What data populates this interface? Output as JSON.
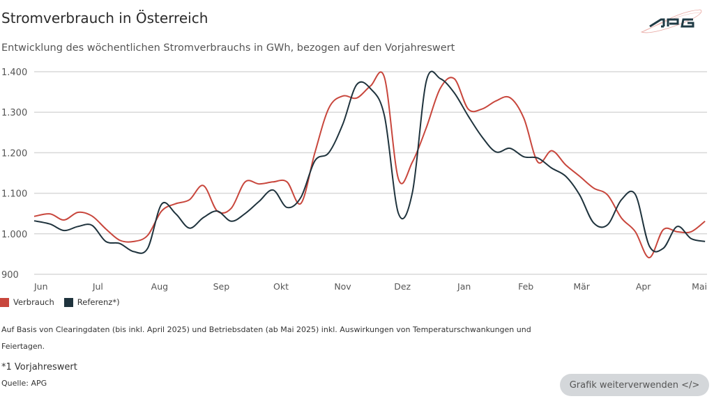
{
  "header": {
    "title": "Stromverbrauch in Österreich",
    "subtitle": "Entwicklung des wöchentlichen Stromverbrauchs in GWh, bezogen auf den Vorjahreswert",
    "logo_text": "APG"
  },
  "chart_data": {
    "type": "line",
    "title": "Stromverbrauch in Österreich",
    "ylabel": "",
    "xlabel": "",
    "ylim": [
      900,
      1400
    ],
    "yticks": [
      900,
      1000,
      1100,
      1200,
      1300,
      1400
    ],
    "ytick_labels": [
      "900",
      "1.000",
      "1.100",
      "1.200",
      "1.300",
      "1.400"
    ],
    "xtick_labels": [
      "Jun",
      "Jul",
      "Aug",
      "Sep",
      "Okt",
      "Nov",
      "Dez",
      "Jan",
      "Feb",
      "Mär",
      "Apr",
      "Mai"
    ],
    "xtick_dates": [
      "2024-06-01",
      "2024-07-01",
      "2024-08-01",
      "2024-09-01",
      "2024-10-01",
      "2024-11-01",
      "2024-12-01",
      "2025-01-01",
      "2025-02-01",
      "2025-03-01",
      "2025-04-01",
      "2025-05-01"
    ],
    "grid": "horizontal",
    "legend_position": "bottom-left",
    "x": [
      "2024-05-31",
      "2024-06-07",
      "2024-06-14",
      "2024-06-21",
      "2024-06-28",
      "2024-07-05",
      "2024-07-12",
      "2024-07-19",
      "2024-07-26",
      "2024-08-02",
      "2024-08-09",
      "2024-08-16",
      "2024-08-23",
      "2024-08-30",
      "2024-09-06",
      "2024-09-13",
      "2024-09-20",
      "2024-09-27",
      "2024-10-04",
      "2024-10-11",
      "2024-10-18",
      "2024-10-25",
      "2024-11-01",
      "2024-11-08",
      "2024-11-15",
      "2024-11-22",
      "2024-11-29",
      "2024-12-06",
      "2024-12-13",
      "2024-12-20",
      "2024-12-27",
      "2025-01-03",
      "2025-01-10",
      "2025-01-17",
      "2025-01-24",
      "2025-01-31",
      "2025-02-07",
      "2025-02-14",
      "2025-02-21",
      "2025-02-28",
      "2025-03-07",
      "2025-03-14",
      "2025-03-21",
      "2025-03-28",
      "2025-04-04",
      "2025-04-11",
      "2025-04-18",
      "2025-04-25",
      "2025-05-02"
    ],
    "series": [
      {
        "name": "Verbrauch",
        "color": "#c8463c",
        "values": [
          1043,
          1049,
          1034,
          1053,
          1044,
          1012,
          984,
          981,
          996,
          1056,
          1074,
          1084,
          1119,
          1056,
          1063,
          1128,
          1123,
          1128,
          1128,
          1075,
          1200,
          1310,
          1340,
          1335,
          1365,
          1385,
          1135,
          1177,
          1262,
          1359,
          1383,
          1308,
          1308,
          1328,
          1336,
          1285,
          1177,
          1205,
          1170,
          1142,
          1113,
          1096,
          1039,
          1005,
          941,
          1010,
          1005,
          1005,
          1031
        ]
      },
      {
        "name": "Referenz*)",
        "color": "#1f333d",
        "values": [
          1032,
          1024,
          1008,
          1018,
          1021,
          981,
          976,
          956,
          964,
          1073,
          1050,
          1014,
          1040,
          1056,
          1031,
          1050,
          1080,
          1108,
          1065,
          1090,
          1180,
          1200,
          1270,
          1368,
          1358,
          1290,
          1050,
          1102,
          1377,
          1383,
          1348,
          1291,
          1239,
          1202,
          1211,
          1190,
          1187,
          1162,
          1142,
          1096,
          1027,
          1022,
          1084,
          1097,
          970,
          964,
          1018,
          988,
          981
        ]
      }
    ]
  },
  "legend": [
    {
      "label": "Verbrauch",
      "color": "#c8463c"
    },
    {
      "label": "Referenz*)",
      "color": "#1f333d"
    }
  ],
  "footer": {
    "note_line1": "Auf Basis von Clearingdaten (bis inkl. April 2025) und Betriebsdaten (ab Mai 2025) inkl. Auswirkungen von Temperaturschwankungen und",
    "note_line2": "Feiertagen.",
    "footnote": "*1 Vorjahreswert",
    "source": "Quelle: APG",
    "reuse_button": "Grafik weiterverwenden </>"
  }
}
